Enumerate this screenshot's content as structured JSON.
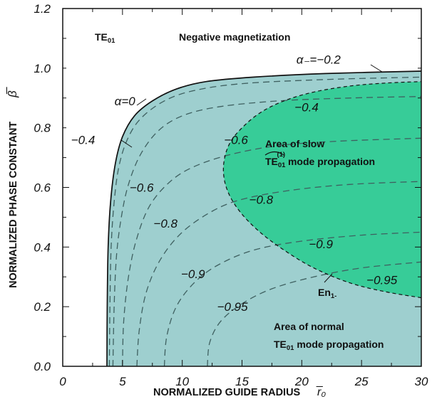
{
  "chart_data": {
    "type": "line",
    "xlabel": "NORMALIZED GUIDE RADIUS",
    "xlabel_symbol": "r̅₀",
    "ylabel": "NORMALIZED PHASE CONSTANT",
    "ylabel_symbol": "β̅",
    "xlim": [
      0,
      30
    ],
    "ylim": [
      0,
      1.2
    ],
    "xticks": [
      "0",
      "5",
      "10",
      "15",
      "20",
      "25",
      "30"
    ],
    "yticks": [
      "0.0",
      "0.2",
      "0.4",
      "0.6",
      "0.8",
      "1.0",
      "1.2"
    ],
    "grid": false,
    "colors": {
      "normal_region": "#9ecfcf",
      "slow_region": "#37cc98",
      "boundary": "#111111",
      "contour": "#3f6060"
    },
    "mode_label": {
      "main": "TE",
      "sub": "01"
    },
    "heading": "Negative magnetization",
    "slow_region": {
      "line1": "Area of slow",
      "line2_main": "TE",
      "line2_sub": "01",
      "line2_sup": "(1)",
      "line2_rest": " mode propagation"
    },
    "normal_region": {
      "line1": "Area of normal",
      "line2_main": "TE",
      "line2_sub": "01",
      "line2_rest": " mode propagation"
    },
    "en_label": {
      "main": "En",
      "sub": "1-"
    },
    "series": [
      {
        "name": "α=0",
        "points": [
          [
            3.7,
            0
          ],
          [
            3.72,
            0.2
          ],
          [
            3.8,
            0.4
          ],
          [
            4.0,
            0.55
          ],
          [
            4.4,
            0.68
          ],
          [
            5.0,
            0.77
          ],
          [
            6.0,
            0.84
          ],
          [
            7.5,
            0.89
          ],
          [
            9.5,
            0.93
          ],
          [
            12,
            0.955
          ],
          [
            16,
            0.97
          ],
          [
            22,
            0.982
          ],
          [
            30,
            0.99
          ]
        ]
      },
      {
        "name": "α₋=−0.2",
        "points": [
          [
            3.9,
            0
          ],
          [
            3.95,
            0.2
          ],
          [
            4.05,
            0.4
          ],
          [
            4.3,
            0.55
          ],
          [
            4.7,
            0.67
          ],
          [
            5.4,
            0.76
          ],
          [
            6.5,
            0.83
          ],
          [
            8.5,
            0.89
          ],
          [
            11,
            0.925
          ],
          [
            15,
            0.948
          ],
          [
            22,
            0.962
          ],
          [
            30,
            0.97
          ]
        ]
      },
      {
        "name": "−0.4",
        "points": [
          [
            4.2,
            0
          ],
          [
            4.3,
            0.2
          ],
          [
            4.5,
            0.37
          ],
          [
            4.9,
            0.5
          ],
          [
            5.5,
            0.61
          ],
          [
            6.5,
            0.71
          ],
          [
            8,
            0.79
          ],
          [
            10,
            0.84
          ],
          [
            13,
            0.87
          ],
          [
            18,
            0.89
          ],
          [
            24,
            0.9
          ],
          [
            30,
            0.905
          ]
        ]
      },
      {
        "name": "−0.6",
        "points": [
          [
            5.0,
            0
          ],
          [
            5.1,
            0.15
          ],
          [
            5.5,
            0.3
          ],
          [
            6.2,
            0.43
          ],
          [
            7.3,
            0.54
          ],
          [
            9,
            0.62
          ],
          [
            11,
            0.67
          ],
          [
            14,
            0.71
          ],
          [
            18,
            0.74
          ],
          [
            23,
            0.755
          ],
          [
            30,
            0.765
          ]
        ]
      },
      {
        "name": "−0.8",
        "points": [
          [
            6.2,
            0
          ],
          [
            6.4,
            0.12
          ],
          [
            7,
            0.25
          ],
          [
            8.2,
            0.36
          ],
          [
            10,
            0.45
          ],
          [
            12.5,
            0.52
          ],
          [
            15,
            0.56
          ],
          [
            19,
            0.59
          ],
          [
            24,
            0.61
          ],
          [
            30,
            0.62
          ]
        ]
      },
      {
        "name": "−0.9",
        "points": [
          [
            8.5,
            0
          ],
          [
            8.7,
            0.1
          ],
          [
            9.5,
            0.2
          ],
          [
            11,
            0.28
          ],
          [
            13,
            0.34
          ],
          [
            16,
            0.39
          ],
          [
            20,
            0.42
          ],
          [
            25,
            0.44
          ],
          [
            30,
            0.45
          ]
        ]
      },
      {
        "name": "−0.95",
        "points": [
          [
            12.1,
            0
          ],
          [
            12.3,
            0.08
          ],
          [
            13.2,
            0.15
          ],
          [
            15,
            0.21
          ],
          [
            17.5,
            0.26
          ],
          [
            21,
            0.3
          ],
          [
            25,
            0.33
          ],
          [
            30,
            0.35
          ]
        ]
      },
      {
        "name": "En1-",
        "points": [
          [
            30,
            0.23
          ],
          [
            27,
            0.25
          ],
          [
            24,
            0.28
          ],
          [
            21,
            0.33
          ],
          [
            18.5,
            0.39
          ],
          [
            16.5,
            0.45
          ],
          [
            15,
            0.51
          ],
          [
            14,
            0.57
          ],
          [
            13.5,
            0.63
          ],
          [
            13.5,
            0.69
          ],
          [
            14,
            0.75
          ],
          [
            15,
            0.8
          ],
          [
            16.5,
            0.85
          ],
          [
            18.5,
            0.89
          ],
          [
            21,
            0.92
          ],
          [
            24,
            0.94
          ],
          [
            27,
            0.95
          ],
          [
            30,
            0.955
          ]
        ]
      }
    ],
    "contour_labels": [
      {
        "text": "α=0",
        "at": [
          5.2,
          0.89
        ]
      },
      {
        "text": "α₋=−0.2",
        "at": [
          21.4,
          1.03
        ]
      },
      {
        "text": "−0.4",
        "at": [
          1.7,
          0.76
        ]
      },
      {
        "text": "−0.4",
        "at": [
          20.4,
          0.87
        ]
      },
      {
        "text": "−0.6",
        "at": [
          6.6,
          0.6
        ]
      },
      {
        "text": "−0.6",
        "at": [
          14.5,
          0.76
        ]
      },
      {
        "text": "−0.8",
        "at": [
          8.6,
          0.48
        ]
      },
      {
        "text": "−0.8",
        "at": [
          16.6,
          0.56
        ]
      },
      {
        "text": "−0.9",
        "at": [
          10.9,
          0.31
        ]
      },
      {
        "text": "−0.9",
        "at": [
          21.6,
          0.41
        ]
      },
      {
        "text": "−0.95",
        "at": [
          14.2,
          0.2
        ]
      },
      {
        "text": "−0.95",
        "at": [
          26.7,
          0.29
        ]
      }
    ]
  }
}
